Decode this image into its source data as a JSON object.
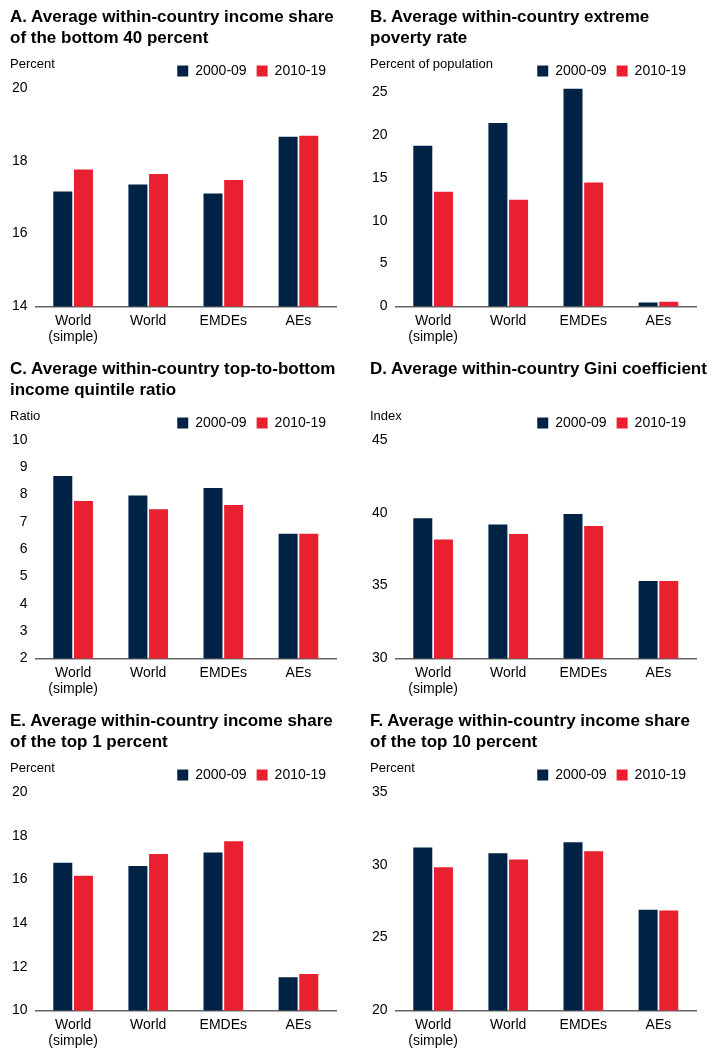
{
  "chart_data": [
    {
      "type": "bar",
      "title": "A. Average within-country income share of the bottom 40 percent",
      "ylabel": "Percent",
      "categories": [
        "World\n(simple)",
        "World",
        "EMDEs",
        "AEs"
      ],
      "series": [
        {
          "name": "2000-09",
          "color": "#002345",
          "values": [
            17.16,
            17.35,
            17.1,
            18.66
          ]
        },
        {
          "name": "2010-19",
          "color": "#e8202f",
          "values": [
            17.76,
            17.64,
            17.47,
            18.69
          ]
        }
      ],
      "ylim": [
        14,
        20
      ],
      "yticks": [
        14,
        16,
        18,
        20
      ],
      "grid": false,
      "legend": "top right"
    },
    {
      "type": "bar",
      "title": "B. Average within-country extreme poverty rate",
      "ylabel": "Percent of population",
      "categories": [
        "World\n(simple)",
        "World",
        "EMDEs",
        "AEs"
      ],
      "series": [
        {
          "name": "2000-09",
          "color": "#002345",
          "values": [
            18.75,
            21.4,
            25.4,
            0.46
          ]
        },
        {
          "name": "2010-19",
          "color": "#e8202f",
          "values": [
            13.4,
            12.45,
            14.46,
            0.55
          ]
        }
      ],
      "ylim": [
        0,
        25.5
      ],
      "yticks": [
        0,
        5,
        10,
        15,
        20,
        25
      ],
      "grid": false,
      "legend": "top right"
    },
    {
      "type": "bar",
      "title": "C. Average within-country top-to-bottom income quintile ratio",
      "ylabel": "Ratio",
      "categories": [
        "World\n(simple)",
        "World",
        "EMDEs",
        "AEs"
      ],
      "series": [
        {
          "name": "2000-09",
          "color": "#002345",
          "values": [
            8.68,
            7.97,
            8.24,
            6.57
          ]
        },
        {
          "name": "2010-19",
          "color": "#e8202f",
          "values": [
            7.77,
            7.46,
            7.62,
            6.57
          ]
        }
      ],
      "ylim": [
        2,
        10
      ],
      "yticks": [
        2,
        3,
        4,
        5,
        6,
        7,
        8,
        9,
        10
      ],
      "grid": false,
      "legend": "top right"
    },
    {
      "type": "bar",
      "title": "D. Average within-country Gini coefficient",
      "ylabel": "Index",
      "categories": [
        "World\n(simple)",
        "World",
        "EMDEs",
        "AEs"
      ],
      "series": [
        {
          "name": "2000-09",
          "color": "#002345",
          "values": [
            39.63,
            39.2,
            39.91,
            35.31
          ]
        },
        {
          "name": "2010-19",
          "color": "#e8202f",
          "values": [
            38.17,
            38.54,
            39.09,
            35.31
          ]
        }
      ],
      "ylim": [
        30,
        45
      ],
      "yticks": [
        30,
        35,
        40,
        45
      ],
      "grid": false,
      "legend": "top right"
    },
    {
      "type": "bar",
      "title": "E. Average within-country income share of the top 1 percent",
      "ylabel": "Percent",
      "categories": [
        "World\n(simple)",
        "World",
        "EMDEs",
        "AEs"
      ],
      "series": [
        {
          "name": "2000-09",
          "color": "#002345",
          "values": [
            16.76,
            16.61,
            17.23,
            11.52
          ]
        },
        {
          "name": "2010-19",
          "color": "#e8202f",
          "values": [
            16.17,
            17.16,
            17.75,
            11.67
          ]
        }
      ],
      "ylim": [
        10,
        20
      ],
      "yticks": [
        10,
        12,
        14,
        16,
        18,
        20
      ],
      "grid": false,
      "legend": "top right"
    },
    {
      "type": "bar",
      "title": "F. Average within-country income share of the top 10 percent",
      "ylabel": "Percent",
      "categories": [
        "World\n(simple)",
        "World",
        "EMDEs",
        "AEs"
      ],
      "series": [
        {
          "name": "2000-09",
          "color": "#002345",
          "values": [
            31.19,
            30.79,
            31.55,
            26.92
          ]
        },
        {
          "name": "2010-19",
          "color": "#e8202f",
          "values": [
            29.83,
            30.37,
            30.93,
            26.86
          ]
        }
      ],
      "ylim": [
        20,
        35
      ],
      "yticks": [
        20,
        25,
        30,
        35
      ],
      "grid": false,
      "legend": "top right"
    }
  ]
}
